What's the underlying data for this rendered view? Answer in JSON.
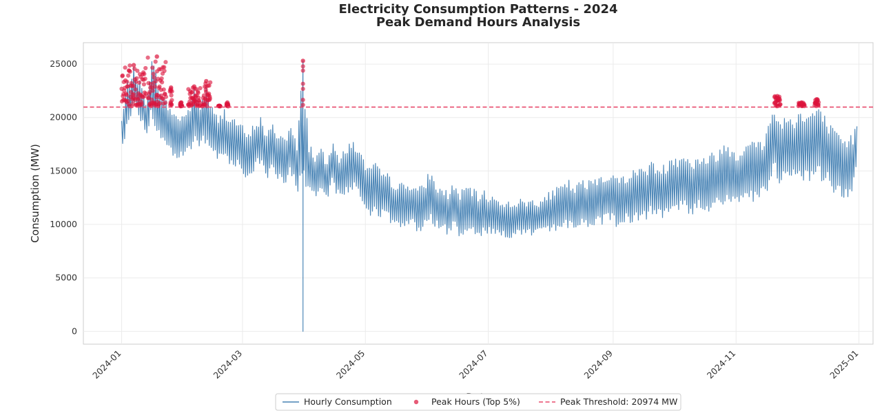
{
  "chart_data": {
    "type": "line",
    "title": "Electricity Consumption Patterns - 2024",
    "subtitle": "Peak Demand Hours Analysis",
    "xlabel": "Date",
    "ylabel": "Consumption (MW)",
    "xlim": [
      "2023-12-13",
      "2025-01-08"
    ],
    "ylim": [
      -1200,
      27000
    ],
    "x_ticks": [
      "2024-01",
      "2024-03",
      "2024-05",
      "2024-07",
      "2024-09",
      "2024-11",
      "2025-01"
    ],
    "y_ticks": [
      0,
      5000,
      10000,
      15000,
      20000,
      25000
    ],
    "grid": true,
    "legend_position": "bottom-center",
    "colors": {
      "line": "#4682b4",
      "peak": "#dc143c",
      "threshold": "#e8486b"
    },
    "threshold": 20974,
    "series": [
      {
        "name": "Hourly Consumption",
        "kind": "line",
        "x": [
          "2024-01-01",
          "2024-01-04",
          "2024-01-07",
          "2024-01-10",
          "2024-01-13",
          "2024-01-16",
          "2024-01-19",
          "2024-01-22",
          "2024-01-25",
          "2024-01-28",
          "2024-01-31",
          "2024-02-03",
          "2024-02-06",
          "2024-02-09",
          "2024-02-12",
          "2024-02-15",
          "2024-02-18",
          "2024-02-21",
          "2024-02-24",
          "2024-02-27",
          "2024-03-01",
          "2024-03-04",
          "2024-03-07",
          "2024-03-10",
          "2024-03-13",
          "2024-03-16",
          "2024-03-19",
          "2024-03-22",
          "2024-03-25",
          "2024-03-28",
          "2024-03-31",
          "2024-04-03",
          "2024-04-06",
          "2024-04-09",
          "2024-04-12",
          "2024-04-15",
          "2024-04-18",
          "2024-04-21",
          "2024-04-24",
          "2024-04-27",
          "2024-04-30",
          "2024-05-03",
          "2024-05-06",
          "2024-05-09",
          "2024-05-12",
          "2024-05-15",
          "2024-05-18",
          "2024-05-21",
          "2024-05-24",
          "2024-05-27",
          "2024-05-30",
          "2024-06-02",
          "2024-06-05",
          "2024-06-08",
          "2024-06-11",
          "2024-06-14",
          "2024-06-17",
          "2024-06-20",
          "2024-06-23",
          "2024-06-26",
          "2024-06-29",
          "2024-07-02",
          "2024-07-05",
          "2024-07-08",
          "2024-07-11",
          "2024-07-14",
          "2024-07-17",
          "2024-07-20",
          "2024-07-23",
          "2024-07-26",
          "2024-07-29",
          "2024-08-01",
          "2024-08-04",
          "2024-08-07",
          "2024-08-10",
          "2024-08-13",
          "2024-08-16",
          "2024-08-19",
          "2024-08-22",
          "2024-08-25",
          "2024-08-28",
          "2024-08-31",
          "2024-09-03",
          "2024-09-06",
          "2024-09-09",
          "2024-09-12",
          "2024-09-15",
          "2024-09-18",
          "2024-09-21",
          "2024-09-24",
          "2024-09-27",
          "2024-09-30",
          "2024-10-03",
          "2024-10-06",
          "2024-10-09",
          "2024-10-12",
          "2024-10-15",
          "2024-10-18",
          "2024-10-21",
          "2024-10-24",
          "2024-10-27",
          "2024-10-30",
          "2024-11-02",
          "2024-11-05",
          "2024-11-08",
          "2024-11-11",
          "2024-11-14",
          "2024-11-17",
          "2024-11-20",
          "2024-11-23",
          "2024-11-26",
          "2024-11-29",
          "2024-12-02",
          "2024-12-05",
          "2024-12-08",
          "2024-12-11",
          "2024-12-14",
          "2024-12-17",
          "2024-12-20",
          "2024-12-23",
          "2024-12-26",
          "2024-12-29",
          "2024-12-31"
        ],
        "high": [
          20000,
          23500,
          24700,
          23500,
          21800,
          25600,
          23800,
          22000,
          21200,
          20400,
          20500,
          20900,
          22800,
          21500,
          23200,
          21100,
          20000,
          21000,
          20300,
          20000,
          19300,
          18500,
          19700,
          20200,
          18600,
          19500,
          18700,
          18500,
          19400,
          17500,
          25300,
          17800,
          16700,
          17200,
          15900,
          18500,
          16500,
          17000,
          18200,
          17500,
          16200,
          15500,
          15800,
          15000,
          14800,
          14200,
          14000,
          13800,
          14200,
          13600,
          13700,
          15300,
          13800,
          13500,
          13200,
          14000,
          13000,
          13800,
          13500,
          12900,
          13200,
          12800,
          12600,
          12400,
          12200,
          12300,
          12400,
          12300,
          12500,
          12400,
          12600,
          13200,
          13500,
          13800,
          14200,
          13500,
          14300,
          14000,
          14600,
          14800,
          14600,
          15300,
          14400,
          14800,
          15100,
          15200,
          15600,
          15700,
          16000,
          15500,
          15700,
          16800,
          16600,
          17000,
          16100,
          16300,
          16700,
          16500,
          16900,
          17300,
          17800,
          17500,
          16800,
          18000,
          18200,
          17800,
          18000,
          19500,
          21500,
          19800,
          20500,
          20200,
          21000,
          20300,
          20800,
          21200,
          20500,
          19800,
          18800,
          18200,
          18000,
          18600,
          20000
        ],
        "low": [
          16500,
          19500,
          20800,
          19800,
          18200,
          19800,
          18200,
          17200,
          16800,
          15800,
          15900,
          16300,
          17500,
          16900,
          17400,
          16200,
          15800,
          16000,
          15600,
          15400,
          14600,
          14100,
          15000,
          15400,
          14200,
          14800,
          14000,
          13800,
          14600,
          12800,
          13200,
          13000,
          12200,
          12600,
          11800,
          13600,
          12200,
          12600,
          13000,
          12800,
          11500,
          10800,
          11000,
          10500,
          10200,
          9800,
          9600,
          9400,
          9800,
          9300,
          9400,
          10200,
          9500,
          9200,
          9000,
          9500,
          8800,
          9300,
          9100,
          8900,
          9000,
          8900,
          8800,
          8700,
          8700,
          8800,
          8800,
          8800,
          8900,
          8900,
          9000,
          9200,
          9400,
          9500,
          9700,
          9400,
          9700,
          9500,
          9800,
          10000,
          9900,
          10200,
          9700,
          9900,
          10100,
          10200,
          10400,
          10500,
          10700,
          10400,
          10500,
          11200,
          11000,
          11300,
          10800,
          11000,
          11200,
          11100,
          11300,
          11600,
          12000,
          11800,
          11300,
          12000,
          12200,
          12000,
          12200,
          13000,
          14500,
          13400,
          13800,
          13600,
          14200,
          13800,
          14000,
          14200,
          13800,
          13400,
          12800,
          12400,
          12300,
          12700,
          15500
        ],
        "spike": {
          "date": "2024-03-31",
          "max": 25300,
          "min": 0
        }
      },
      {
        "name": "Peak Hours (Top 5%)",
        "kind": "scatter",
        "clusters": [
          {
            "from": "2024-01-01",
            "to": "2024-01-13",
            "max": 24900
          },
          {
            "from": "2024-01-14",
            "to": "2024-01-23",
            "max": 25700
          },
          {
            "from": "2024-01-25",
            "to": "2024-01-26",
            "max": 22800
          },
          {
            "from": "2024-01-30",
            "to": "2024-01-31",
            "max": 21400
          },
          {
            "from": "2024-02-03",
            "to": "2024-02-09",
            "max": 22900
          },
          {
            "from": "2024-02-10",
            "to": "2024-02-14",
            "max": 23400
          },
          {
            "from": "2024-02-18",
            "to": "2024-02-19",
            "max": 21100
          },
          {
            "from": "2024-02-22",
            "to": "2024-02-23",
            "max": 21400
          },
          {
            "from": "2024-03-31",
            "to": "2024-03-31",
            "max": 25300
          },
          {
            "from": "2024-11-20",
            "to": "2024-11-23",
            "max": 22000
          },
          {
            "from": "2024-12-02",
            "to": "2024-12-05",
            "max": 21400
          },
          {
            "from": "2024-12-10",
            "to": "2024-12-12",
            "max": 21700
          }
        ]
      },
      {
        "name": "Peak Threshold: 20974 MW",
        "kind": "hline",
        "value": 20974
      }
    ]
  }
}
